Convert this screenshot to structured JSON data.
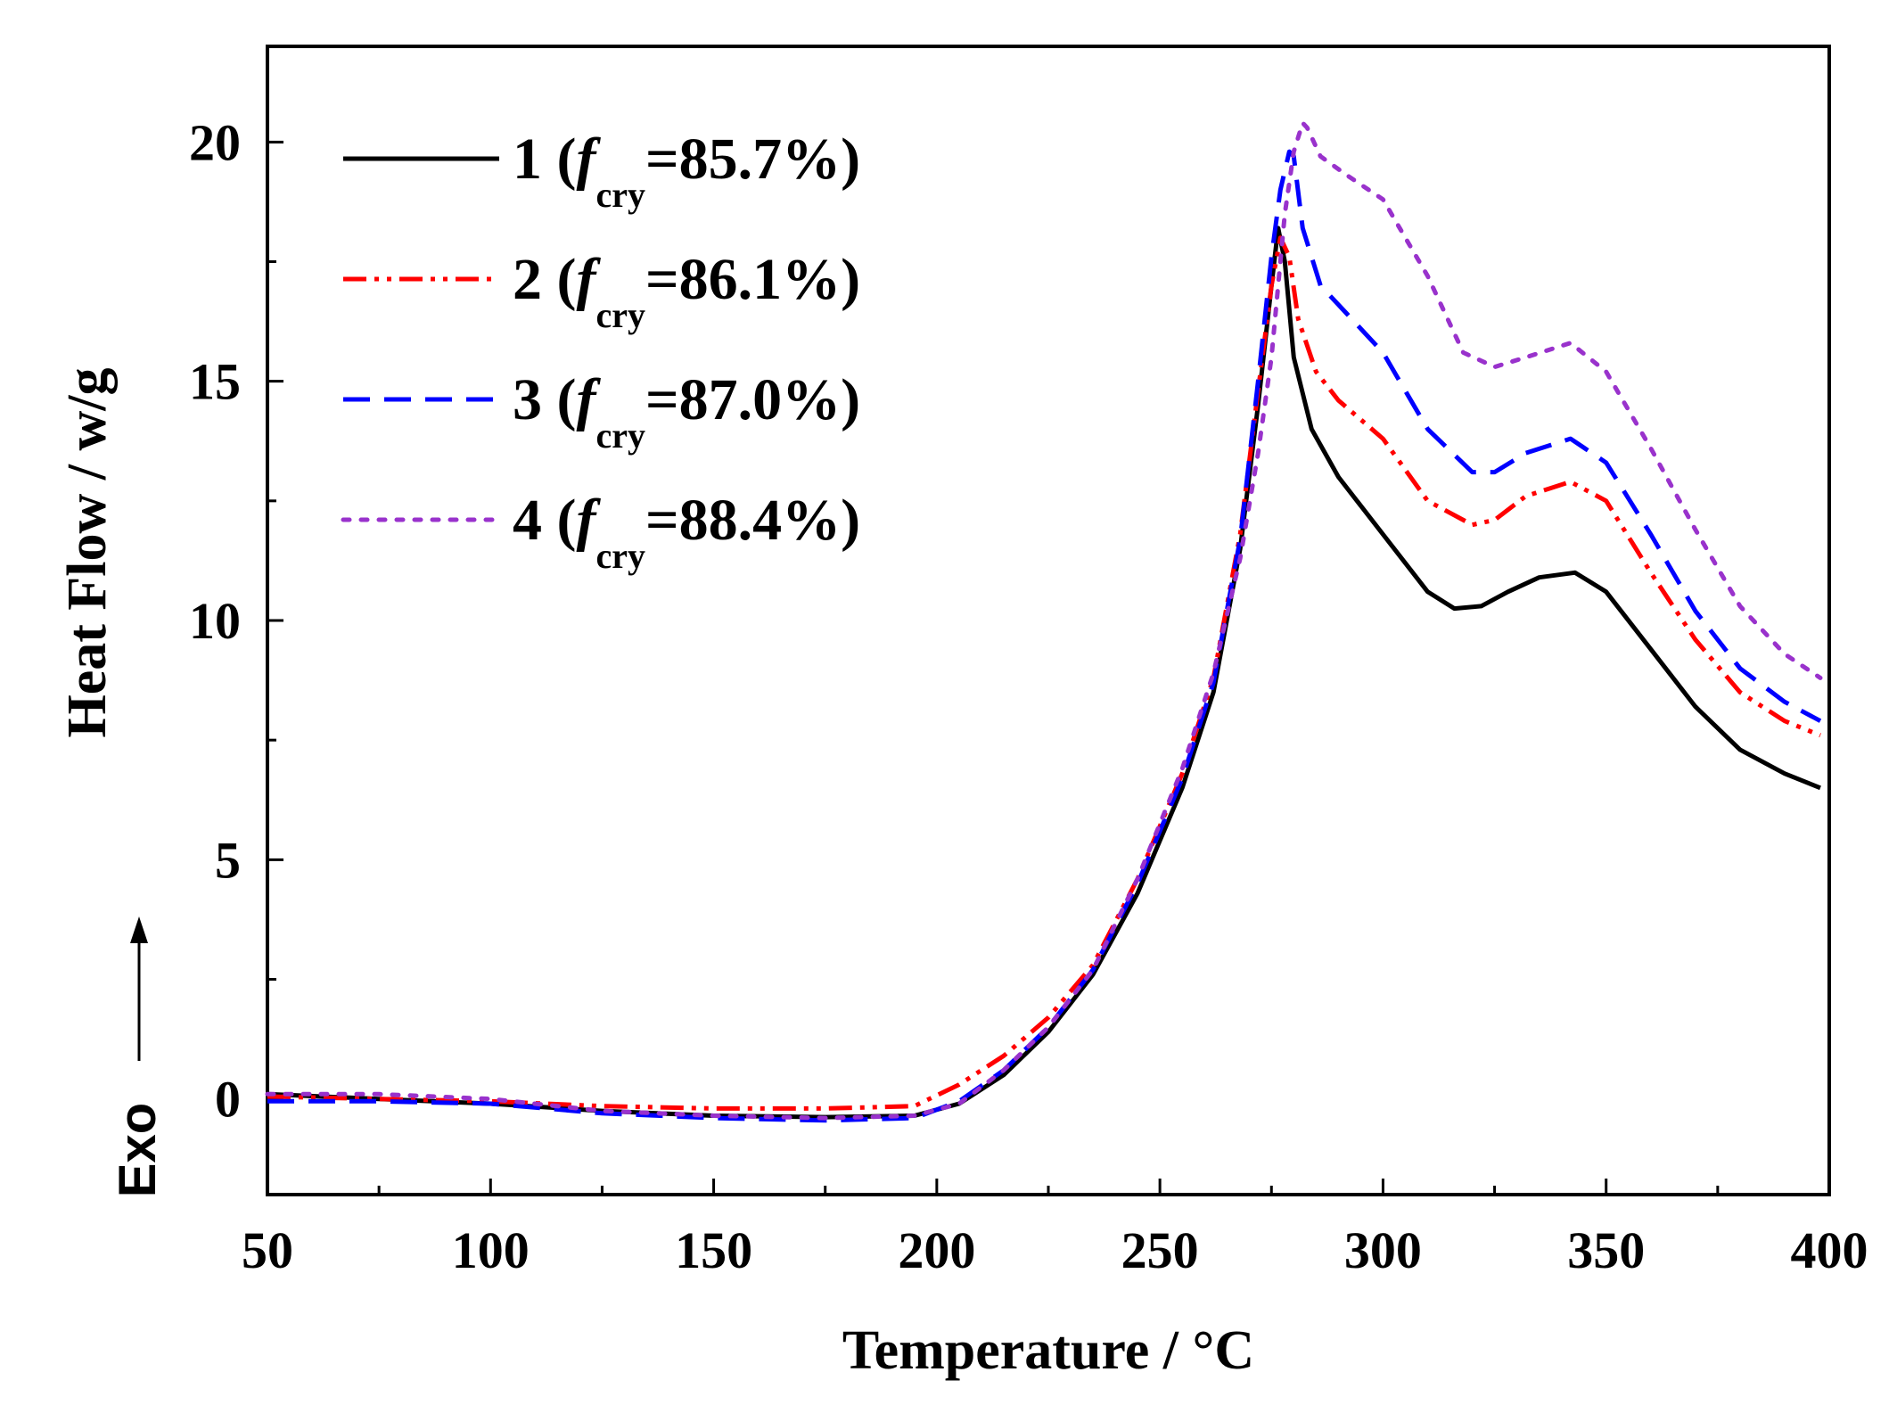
{
  "chart_data": {
    "type": "line",
    "xlabel": "Temperature / °C",
    "ylabel": "Heat Flow / w/g",
    "exo_label": "Exo",
    "xlim": [
      50,
      400
    ],
    "ylim": [
      -2,
      22
    ],
    "xticks": [
      50,
      100,
      150,
      200,
      250,
      300,
      350,
      400
    ],
    "yticks": [
      0,
      5,
      10,
      15,
      20
    ],
    "legend_position": "top-left",
    "series": [
      {
        "name": "1",
        "legend_number": "1",
        "legend_label": "1 (f",
        "legend_sub": "cry",
        "legend_value": "=85.7%)",
        "color": "#000000",
        "dash": "solid",
        "x": [
          50,
          75,
          100,
          125,
          150,
          175,
          195,
          205,
          215,
          225,
          235,
          245,
          255,
          262,
          268,
          272,
          275,
          276.5,
          278,
          280,
          284,
          290,
          300,
          310,
          316,
          322,
          328,
          335,
          343,
          350,
          360,
          370,
          380,
          390,
          398
        ],
        "y": [
          0.1,
          0.0,
          -0.1,
          -0.25,
          -0.35,
          -0.38,
          -0.35,
          -0.1,
          0.5,
          1.4,
          2.6,
          4.3,
          6.5,
          8.5,
          11.5,
          14.5,
          17.0,
          18.2,
          17.5,
          15.5,
          14.0,
          13.0,
          11.8,
          10.6,
          10.25,
          10.3,
          10.6,
          10.9,
          11.0,
          10.6,
          9.4,
          8.2,
          7.3,
          6.8,
          6.5
        ]
      },
      {
        "name": "2",
        "legend_number": "2",
        "legend_label": "2 (f",
        "legend_sub": "cry",
        "legend_value": "=86.1%)",
        "color": "#ff0000",
        "dash": "dashdotdot",
        "x": [
          50,
          75,
          100,
          125,
          150,
          175,
          195,
          205,
          215,
          225,
          235,
          245,
          255,
          262,
          268,
          272,
          275,
          277,
          279,
          281,
          285,
          290,
          300,
          310,
          320,
          325,
          332,
          342,
          350,
          360,
          370,
          380,
          390,
          398
        ],
        "y": [
          0.05,
          0.0,
          -0.05,
          -0.15,
          -0.2,
          -0.2,
          -0.15,
          0.3,
          0.9,
          1.7,
          2.8,
          4.6,
          6.8,
          8.8,
          11.8,
          14.8,
          17.0,
          18.0,
          17.6,
          16.3,
          15.2,
          14.6,
          13.8,
          12.5,
          12.0,
          12.1,
          12.6,
          12.9,
          12.5,
          11.0,
          9.6,
          8.5,
          7.9,
          7.6
        ]
      },
      {
        "name": "3",
        "legend_number": "3",
        "legend_label": "3 (f",
        "legend_sub": "cry",
        "legend_value": "=87.0%)",
        "color": "#0000ff",
        "dash": "dash",
        "x": [
          50,
          75,
          100,
          125,
          150,
          175,
          195,
          205,
          215,
          225,
          235,
          245,
          255,
          262,
          268,
          272,
          275,
          277,
          279,
          280,
          282,
          286,
          292,
          300,
          310,
          320,
          325,
          332,
          342,
          350,
          360,
          370,
          380,
          390,
          398
        ],
        "y": [
          -0.05,
          -0.05,
          -0.1,
          -0.3,
          -0.4,
          -0.45,
          -0.4,
          -0.05,
          0.6,
          1.5,
          2.7,
          4.5,
          6.7,
          8.7,
          11.7,
          15.0,
          17.6,
          19.0,
          19.8,
          19.7,
          18.2,
          17.0,
          16.4,
          15.6,
          14.0,
          13.1,
          13.1,
          13.5,
          13.8,
          13.3,
          11.8,
          10.2,
          9.0,
          8.3,
          7.9
        ]
      },
      {
        "name": "4",
        "legend_number": "4",
        "legend_label": "4 (f",
        "legend_sub": "cry",
        "legend_value": "=88.4%)",
        "color": "#9932cc",
        "dash": "dot",
        "x": [
          50,
          75,
          100,
          125,
          150,
          175,
          195,
          205,
          215,
          225,
          235,
          245,
          255,
          262,
          268,
          272,
          275,
          278,
          280,
          282,
          283,
          286,
          292,
          300,
          310,
          318,
          325,
          332,
          342,
          350,
          360,
          370,
          380,
          390,
          398
        ],
        "y": [
          0.1,
          0.1,
          0.0,
          -0.25,
          -0.35,
          -0.4,
          -0.35,
          -0.1,
          0.6,
          1.5,
          2.7,
          4.6,
          6.9,
          8.9,
          11.3,
          13.5,
          15.5,
          18.5,
          19.8,
          20.4,
          20.3,
          19.7,
          19.3,
          18.8,
          17.2,
          15.6,
          15.3,
          15.5,
          15.8,
          15.2,
          13.6,
          11.9,
          10.3,
          9.3,
          8.8
        ]
      }
    ]
  }
}
